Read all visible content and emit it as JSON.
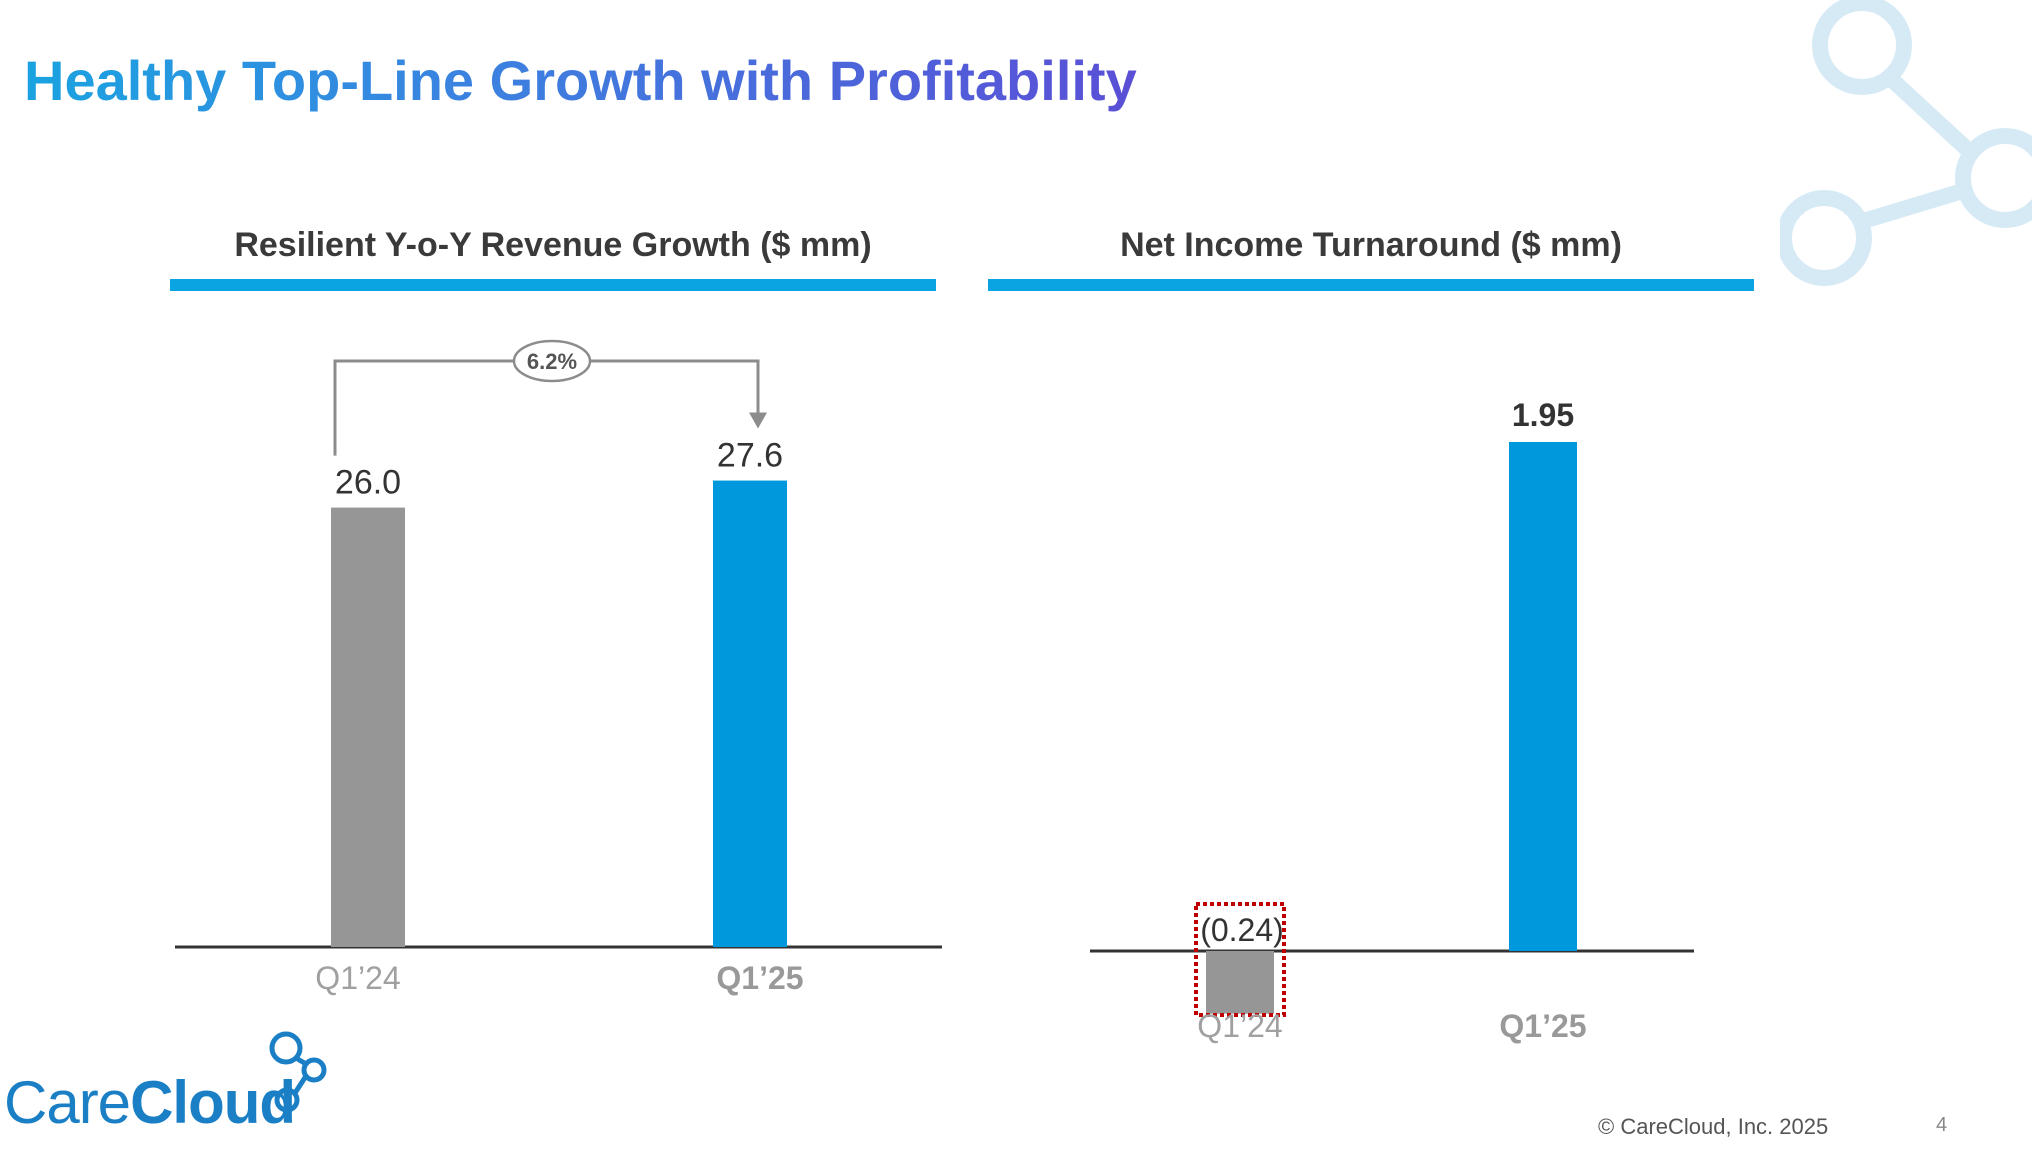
{
  "title": "Healthy Top-Line Growth with Profitability",
  "colors": {
    "accent": "#0aa4e3",
    "prior": "#969696",
    "current": "#0098dc",
    "brand": "#1a7fc4"
  },
  "chart_data": [
    {
      "type": "bar",
      "title": "Resilient Y-o-Y Revenue Growth ($ mm)",
      "categories": [
        "Q1’24",
        "Q1’25"
      ],
      "values": [
        26.0,
        27.6
      ],
      "data_labels": [
        "26.0",
        "27.6"
      ],
      "growth_label": "6.2%",
      "ylim": [
        0,
        30
      ]
    },
    {
      "type": "bar",
      "title": "Net Income Turnaround ($ mm)",
      "categories": [
        "Q1’24",
        "Q1’25"
      ],
      "values": [
        -0.24,
        1.95
      ],
      "data_labels": [
        "(0.24)",
        "1.95"
      ],
      "ylim": [
        -0.3,
        2.2
      ]
    }
  ],
  "logo": {
    "part1": "Care",
    "part2": "Cloud"
  },
  "footer": {
    "copyright": "© CareCloud, Inc. 2025",
    "page_number": "4"
  }
}
